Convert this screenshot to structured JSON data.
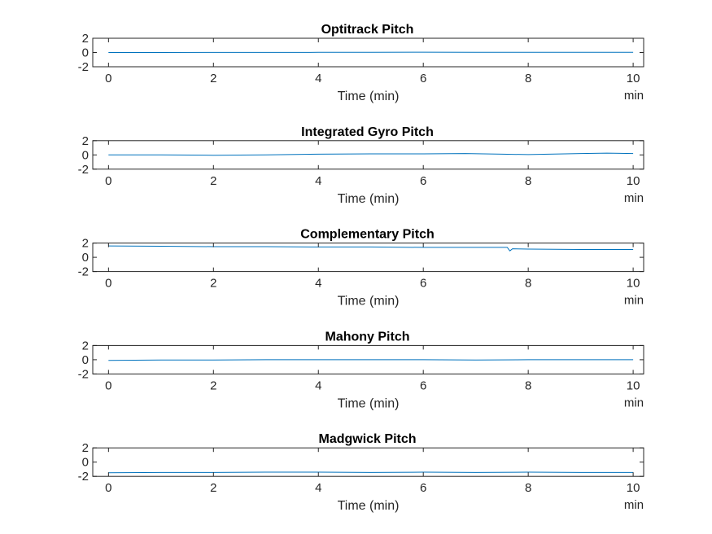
{
  "figure": {
    "x_unit": "min"
  },
  "chart_data": [
    {
      "type": "line",
      "title": "Optitrack Pitch",
      "xlabel": "Time (min)",
      "ylabel": "",
      "xlim": [
        -0.3,
        10.2
      ],
      "ylim": [
        -2,
        2
      ],
      "xticks": [
        0,
        2,
        4,
        6,
        8,
        10
      ],
      "yticks": [
        2,
        0,
        -2
      ],
      "grid": false,
      "series_color": "#0072bd",
      "series": [
        {
          "x": [
            0,
            1,
            2,
            3,
            4,
            5,
            6,
            7,
            8,
            9,
            10
          ],
          "y": [
            0.0,
            0.0,
            0.01,
            0.01,
            0.02,
            0.03,
            0.05,
            0.04,
            0.02,
            0.03,
            0.04
          ]
        }
      ]
    },
    {
      "type": "line",
      "title": "Integrated Gyro Pitch",
      "xlabel": "Time (min)",
      "ylabel": "",
      "xlim": [
        -0.3,
        10.2
      ],
      "ylim": [
        -2,
        2
      ],
      "xticks": [
        0,
        2,
        4,
        6,
        8,
        10
      ],
      "yticks": [
        2,
        0,
        -2
      ],
      "grid": false,
      "series_color": "#0072bd",
      "series": [
        {
          "x": [
            0,
            1,
            2,
            3,
            4,
            5,
            6,
            6.8,
            7.5,
            8,
            9,
            9.5,
            10
          ],
          "y": [
            0.0,
            0.0,
            -0.05,
            0.0,
            0.1,
            0.15,
            0.15,
            0.2,
            0.1,
            0.05,
            0.2,
            0.25,
            0.2
          ]
        }
      ]
    },
    {
      "type": "line",
      "title": "Complementary Pitch",
      "xlabel": "Time (min)",
      "ylabel": "",
      "xlim": [
        -0.3,
        10.2
      ],
      "ylim": [
        -2,
        2
      ],
      "xticks": [
        0,
        2,
        4,
        6,
        8,
        10
      ],
      "yticks": [
        2,
        0,
        -2
      ],
      "grid": false,
      "series_color": "#0072bd",
      "series": [
        {
          "x": [
            0,
            1,
            2,
            3,
            4,
            5,
            6,
            7,
            7.6,
            7.65,
            7.7,
            8,
            9,
            10
          ],
          "y": [
            1.6,
            1.55,
            1.5,
            1.5,
            1.45,
            1.45,
            1.4,
            1.4,
            1.4,
            0.9,
            1.2,
            1.15,
            1.1,
            1.1
          ]
        }
      ]
    },
    {
      "type": "line",
      "title": "Mahony Pitch",
      "xlabel": "Time (min)",
      "ylabel": "",
      "xlim": [
        -0.3,
        10.2
      ],
      "ylim": [
        -2,
        2
      ],
      "xticks": [
        0,
        2,
        4,
        6,
        8,
        10
      ],
      "yticks": [
        2,
        0,
        -2
      ],
      "grid": false,
      "series_color": "#0072bd",
      "series": [
        {
          "x": [
            0,
            1,
            2,
            3,
            4,
            5,
            6,
            7,
            8,
            9,
            10
          ],
          "y": [
            -0.1,
            -0.05,
            -0.05,
            0.0,
            0.0,
            0.0,
            0.0,
            -0.05,
            0.0,
            0.0,
            0.0
          ]
        }
      ]
    },
    {
      "type": "line",
      "title": "Madgwick Pitch",
      "xlabel": "Time (min)",
      "ylabel": "",
      "xlim": [
        -0.3,
        10.2
      ],
      "ylim": [
        -2,
        2
      ],
      "xticks": [
        0,
        2,
        4,
        6,
        8,
        10
      ],
      "yticks": [
        2,
        0,
        -2
      ],
      "grid": false,
      "series_color": "#0072bd",
      "series": [
        {
          "x": [
            0,
            1,
            2,
            3,
            4,
            5,
            6,
            7,
            8,
            9,
            10
          ],
          "y": [
            -1.5,
            -1.45,
            -1.45,
            -1.4,
            -1.4,
            -1.45,
            -1.4,
            -1.45,
            -1.4,
            -1.45,
            -1.45
          ]
        }
      ]
    }
  ]
}
